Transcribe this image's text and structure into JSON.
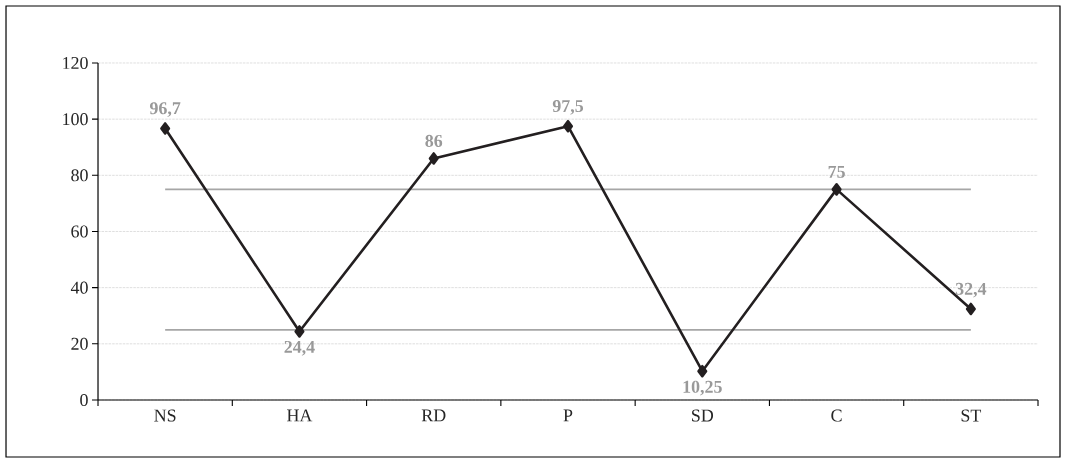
{
  "chart_data": {
    "type": "line",
    "categories": [
      "NS",
      "HA",
      "RD",
      "P",
      "SD",
      "C",
      "ST"
    ],
    "values": [
      96.7,
      24.4,
      86,
      97.5,
      10.25,
      75,
      32.4
    ],
    "value_labels": [
      "96,7",
      "24,4",
      "86",
      "97,5",
      "10,25",
      "75",
      "32,4"
    ],
    "color": "#231f20",
    "ylim": [
      0,
      120
    ],
    "yticks": [
      0,
      20,
      40,
      60,
      80,
      100,
      120
    ],
    "grid": "y",
    "marker": "diamond",
    "line_style": "solid",
    "ref_lines": [
      {
        "axis": "y",
        "value": 75,
        "color": "#a6a6a6"
      },
      {
        "axis": "y",
        "value": 25,
        "color": "#a6a6a6"
      }
    ]
  }
}
